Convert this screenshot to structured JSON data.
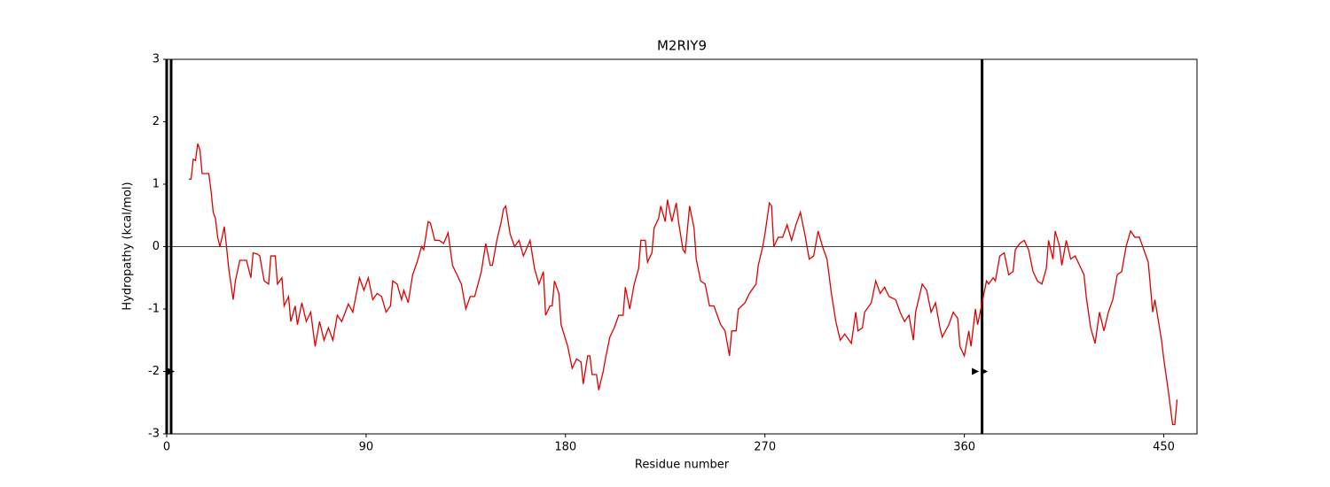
{
  "chart_data": {
    "type": "line",
    "title": "M2RIY9",
    "x_label": "Residue number",
    "y_label": "Hydropathy (kcal/mol)",
    "xlim": [
      0,
      465
    ],
    "ylim": [
      -3,
      3
    ],
    "xticks": [
      0,
      90,
      180,
      270,
      360,
      450
    ],
    "yticks": [
      -3,
      -2,
      -1,
      0,
      1,
      2,
      3
    ],
    "grid": false,
    "hline": 0,
    "vlines": [
      0,
      2,
      368
    ],
    "markers": {
      "x": [
        2,
        365,
        369
      ],
      "y": [
        -2,
        -2,
        -2
      ]
    },
    "series": [
      {
        "color": "#e00000",
        "x": [
          10,
          11,
          12,
          13,
          14,
          15,
          16,
          19,
          20,
          21,
          22,
          23,
          24,
          25,
          26,
          27,
          28,
          30,
          31,
          33,
          36,
          38,
          39,
          41,
          42,
          44,
          46,
          47,
          49,
          50,
          52,
          53,
          55,
          56,
          58,
          59,
          61,
          63,
          65,
          67,
          69,
          71,
          73,
          75,
          77,
          79,
          82,
          84,
          87,
          89,
          91,
          93,
          95,
          97,
          99,
          101,
          102,
          104,
          106,
          107,
          109,
          111,
          113,
          115,
          116,
          118,
          119,
          121,
          123,
          125,
          127,
          129,
          131,
          133,
          135,
          137,
          139,
          142,
          144,
          146,
          147,
          149,
          151,
          152,
          153,
          155,
          157,
          159,
          161,
          164,
          166,
          168,
          170,
          171,
          173,
          174,
          175,
          177,
          178,
          181,
          183,
          185,
          187,
          188,
          190,
          191,
          192,
          194,
          195,
          197,
          198,
          200,
          202,
          204,
          206,
          207,
          209,
          211,
          213,
          214,
          216,
          217,
          219,
          220,
          222,
          223,
          225,
          226,
          228,
          230,
          231,
          233,
          234,
          236,
          238,
          239,
          241,
          243,
          245,
          247,
          250,
          252,
          254,
          255,
          257,
          258,
          261,
          263,
          266,
          267,
          269,
          270,
          272,
          273,
          274,
          276,
          278,
          280,
          282,
          284,
          286,
          288,
          290,
          292,
          294,
          296,
          298,
          300,
          302,
          304,
          306,
          307,
          309,
          311,
          312,
          314,
          315,
          318,
          320,
          322,
          324,
          326,
          329,
          331,
          333,
          335,
          337,
          338,
          341,
          343,
          345,
          347,
          349,
          350,
          353,
          355,
          357,
          358,
          360,
          362,
          363,
          365,
          366,
          368,
          370,
          371,
          373,
          374,
          376,
          378,
          380,
          382,
          383,
          385,
          387,
          389,
          391,
          393,
          395,
          397,
          398,
          400,
          401,
          403,
          404,
          406,
          408,
          410,
          412,
          414,
          415,
          417,
          419,
          421,
          423,
          425,
          427,
          429,
          431,
          433,
          435,
          437,
          439,
          441,
          443,
          445,
          446,
          449,
          450,
          452,
          454,
          455,
          456
        ],
        "values": [
          1.08,
          1.08,
          1.4,
          1.38,
          1.65,
          1.55,
          1.17,
          1.17,
          0.9,
          0.55,
          0.45,
          0.15,
          0,
          0.15,
          0.32,
          0,
          -0.35,
          -0.85,
          -0.55,
          -0.22,
          -0.22,
          -0.5,
          -0.1,
          -0.12,
          -0.15,
          -0.55,
          -0.6,
          -0.15,
          -0.15,
          -0.6,
          -0.5,
          -0.95,
          -0.8,
          -1.2,
          -0.95,
          -1.25,
          -0.9,
          -1.2,
          -1.05,
          -1.6,
          -1.2,
          -1.5,
          -1.3,
          -1.5,
          -1.1,
          -1.2,
          -0.92,
          -1.05,
          -0.5,
          -0.7,
          -0.5,
          -0.85,
          -0.75,
          -0.8,
          -1.05,
          -0.95,
          -0.55,
          -0.6,
          -0.85,
          -0.7,
          -0.9,
          -0.45,
          -0.25,
          0,
          -0.05,
          0.4,
          0.38,
          0.1,
          0.1,
          0.05,
          0.22,
          -0.3,
          -0.45,
          -0.6,
          -1.0,
          -0.8,
          -0.8,
          -0.4,
          0.05,
          -0.3,
          -0.3,
          0.1,
          0.4,
          0.6,
          0.65,
          0.2,
          0,
          0.1,
          -0.15,
          0.1,
          -0.35,
          -0.6,
          -0.4,
          -1.1,
          -0.95,
          -0.95,
          -0.55,
          -0.75,
          -1.25,
          -1.6,
          -1.95,
          -1.8,
          -1.85,
          -2.2,
          -1.75,
          -1.75,
          -2.05,
          -2.05,
          -2.3,
          -2.0,
          -1.8,
          -1.45,
          -1.3,
          -1.1,
          -1.1,
          -0.65,
          -1.0,
          -0.6,
          -0.35,
          0.1,
          0.1,
          -0.25,
          -0.1,
          0.3,
          0.45,
          0.65,
          0.4,
          0.75,
          0.4,
          0.7,
          0.4,
          -0.05,
          -0.1,
          0.65,
          0.3,
          -0.2,
          -0.55,
          -0.6,
          -0.95,
          -0.95,
          -1.25,
          -1.35,
          -1.75,
          -1.35,
          -1.35,
          -1.0,
          -0.9,
          -0.75,
          -0.6,
          -0.3,
          0,
          0.2,
          0.7,
          0.65,
          0,
          0.15,
          0.15,
          0.35,
          0.1,
          0.35,
          0.55,
          0.2,
          -0.2,
          -0.15,
          0.25,
          0,
          -0.2,
          -0.75,
          -1.2,
          -1.5,
          -1.4,
          -1.45,
          -1.55,
          -1.05,
          -1.35,
          -1.3,
          -1.05,
          -0.9,
          -0.55,
          -0.75,
          -0.65,
          -0.8,
          -0.85,
          -1.05,
          -1.2,
          -1.1,
          -1.5,
          -1.05,
          -0.6,
          -0.7,
          -1.05,
          -0.9,
          -1.3,
          -1.45,
          -1.25,
          -1.05,
          -1.15,
          -1.6,
          -1.75,
          -1.35,
          -1.6,
          -1.0,
          -1.25,
          -0.9,
          -0.55,
          -0.6,
          -0.5,
          -0.55,
          -0.15,
          -0.1,
          -0.45,
          -0.4,
          -0.05,
          0.05,
          0.1,
          -0.05,
          -0.4,
          -0.55,
          -0.6,
          -0.35,
          0.1,
          -0.2,
          0.25,
          0,
          -0.3,
          0.1,
          -0.2,
          -0.15,
          -0.3,
          -0.45,
          -0.8,
          -1.3,
          -1.55,
          -1.05,
          -1.35,
          -1.05,
          -0.85,
          -0.45,
          -0.4,
          0,
          0.25,
          0.15,
          0.15,
          -0.05,
          -0.25,
          -1.05,
          -0.85,
          -1.5,
          -1.8,
          -2.3,
          -2.85,
          -2.85,
          -2.45
        ]
      }
    ]
  }
}
